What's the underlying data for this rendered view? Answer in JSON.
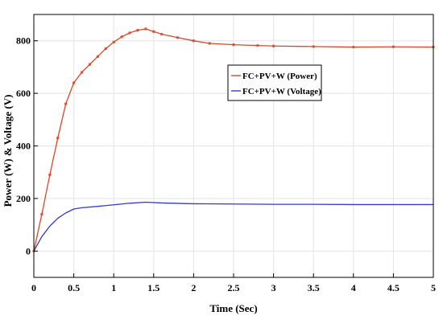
{
  "chart_data": {
    "type": "line",
    "title": "",
    "xlabel": "Time (Sec)",
    "ylabel": "Power (W) & Voltage (V)",
    "xlim": [
      0,
      5
    ],
    "ylim": [
      -100,
      900
    ],
    "xticks": [
      "0",
      "0.5",
      "1",
      "1.5",
      "2",
      "2.5",
      "3",
      "3.5",
      "4",
      "4.5",
      "5"
    ],
    "yticks": [
      "0",
      "200",
      "400",
      "600",
      "800"
    ],
    "grid": true,
    "legend_position": "center-right",
    "series": [
      {
        "name": "FC+PV+W (Power)",
        "color": "#d9472b",
        "style": "line with dense markers",
        "x": [
          0,
          0.1,
          0.2,
          0.3,
          0.4,
          0.5,
          0.6,
          0.7,
          0.8,
          0.9,
          1.0,
          1.1,
          1.2,
          1.3,
          1.4,
          1.5,
          1.6,
          1.8,
          2.0,
          2.2,
          2.5,
          2.8,
          3.0,
          3.5,
          4.0,
          4.5,
          5.0
        ],
        "y": [
          0,
          140,
          290,
          430,
          560,
          640,
          680,
          710,
          740,
          770,
          795,
          815,
          830,
          840,
          845,
          835,
          825,
          812,
          800,
          790,
          785,
          782,
          780,
          778,
          776,
          777,
          776
        ]
      },
      {
        "name": "FC+PV+W (Voltage)",
        "color": "#2f3bd1",
        "style": "line",
        "x": [
          0,
          0.1,
          0.2,
          0.3,
          0.4,
          0.5,
          0.6,
          0.8,
          1.0,
          1.2,
          1.4,
          1.6,
          2.0,
          2.5,
          3.0,
          3.5,
          4.0,
          4.5,
          5.0
        ],
        "y": [
          0,
          55,
          95,
          125,
          145,
          160,
          165,
          170,
          176,
          182,
          186,
          183,
          180,
          179,
          178,
          178,
          177,
          177,
          177
        ]
      }
    ]
  }
}
